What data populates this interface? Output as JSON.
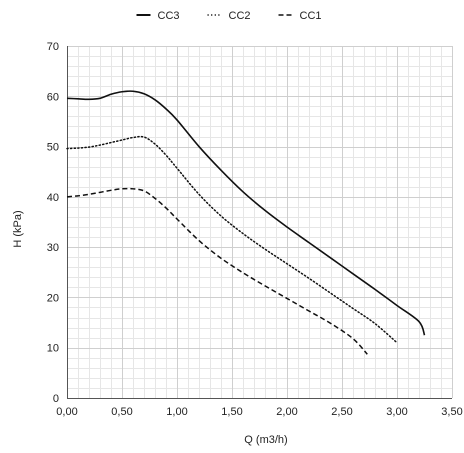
{
  "chart_data": {
    "type": "line",
    "title": "",
    "xlabel": "Q (m3/h)",
    "ylabel": "H (kPa)",
    "xlim": [
      0,
      3.5
    ],
    "ylim": [
      0,
      70
    ],
    "x_ticks": [
      "0,00",
      "0,50",
      "1,00",
      "1,50",
      "2,00",
      "2,50",
      "3,00",
      "3,50"
    ],
    "y_ticks": [
      "0",
      "10",
      "20",
      "30",
      "40",
      "50",
      "60",
      "70"
    ],
    "grid": true,
    "legend_position": "top-center",
    "series": [
      {
        "name": "CC3",
        "line_style": "solid",
        "color": "#111111",
        "points": [
          [
            0.0,
            59.6
          ],
          [
            0.1,
            59.5
          ],
          [
            0.2,
            59.4
          ],
          [
            0.3,
            59.6
          ],
          [
            0.4,
            60.4
          ],
          [
            0.5,
            60.9
          ],
          [
            0.6,
            61.0
          ],
          [
            0.7,
            60.5
          ],
          [
            0.8,
            59.3
          ],
          [
            0.9,
            57.5
          ],
          [
            1.0,
            55.3
          ],
          [
            1.2,
            50.0
          ],
          [
            1.4,
            45.3
          ],
          [
            1.6,
            41.0
          ],
          [
            1.8,
            37.3
          ],
          [
            2.0,
            34.0
          ],
          [
            2.2,
            30.9
          ],
          [
            2.4,
            27.8
          ],
          [
            2.6,
            24.7
          ],
          [
            2.8,
            21.6
          ],
          [
            3.0,
            18.4
          ],
          [
            3.2,
            15.2
          ],
          [
            3.25,
            12.5
          ]
        ]
      },
      {
        "name": "CC2",
        "line_style": "dotted",
        "color": "#111111",
        "points": [
          [
            0.0,
            49.6
          ],
          [
            0.1,
            49.7
          ],
          [
            0.2,
            49.9
          ],
          [
            0.3,
            50.3
          ],
          [
            0.4,
            50.8
          ],
          [
            0.5,
            51.3
          ],
          [
            0.6,
            51.8
          ],
          [
            0.7,
            51.9
          ],
          [
            0.8,
            50.5
          ],
          [
            0.9,
            48.3
          ],
          [
            1.0,
            45.7
          ],
          [
            1.2,
            40.5
          ],
          [
            1.4,
            36.2
          ],
          [
            1.6,
            32.7
          ],
          [
            1.8,
            29.6
          ],
          [
            2.0,
            26.7
          ],
          [
            2.2,
            23.8
          ],
          [
            2.4,
            20.8
          ],
          [
            2.6,
            17.8
          ],
          [
            2.8,
            14.8
          ],
          [
            3.0,
            11.0
          ]
        ]
      },
      {
        "name": "CC1",
        "line_style": "dashed",
        "color": "#111111",
        "points": [
          [
            0.0,
            40.0
          ],
          [
            0.1,
            40.2
          ],
          [
            0.2,
            40.5
          ],
          [
            0.3,
            40.9
          ],
          [
            0.4,
            41.3
          ],
          [
            0.5,
            41.6
          ],
          [
            0.6,
            41.6
          ],
          [
            0.7,
            41.2
          ],
          [
            0.8,
            39.7
          ],
          [
            0.9,
            37.8
          ],
          [
            1.0,
            35.6
          ],
          [
            1.2,
            31.3
          ],
          [
            1.4,
            27.8
          ],
          [
            1.6,
            24.9
          ],
          [
            1.8,
            22.3
          ],
          [
            2.0,
            19.8
          ],
          [
            2.2,
            17.3
          ],
          [
            2.4,
            14.8
          ],
          [
            2.6,
            11.8
          ],
          [
            2.73,
            8.7
          ]
        ]
      }
    ]
  }
}
